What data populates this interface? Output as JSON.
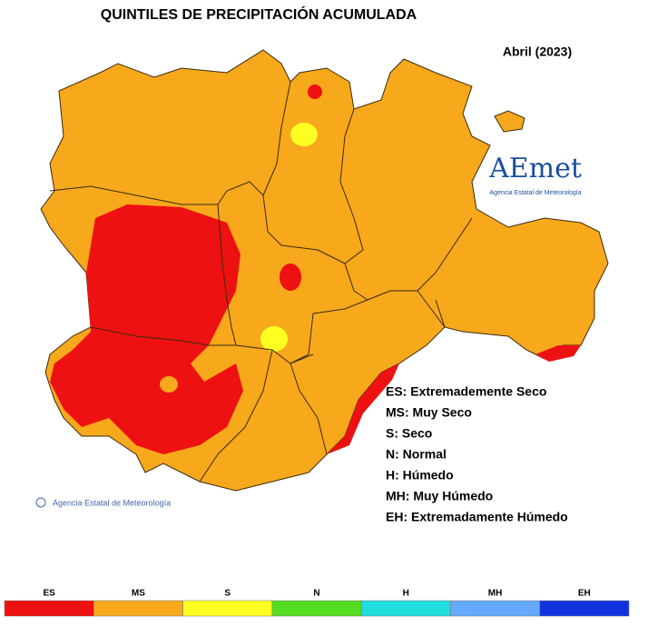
{
  "title": "QUINTILES DE PRECIPITACIÓN ACUMULADA",
  "period": "Abril (2023)",
  "logo": {
    "name": "AEmet",
    "subtitle": "Agencia Estatal de Meteorología"
  },
  "credit": "Agencia Estatal de Meteorología",
  "legend": [
    "ES: Extremademente Seco",
    "MS: Muy Seco",
    "S: Seco",
    "N: Normal",
    "H: Húmedo",
    "MH: Muy Húmedo",
    "EH: Extremadamente Húmedo"
  ],
  "color_scale": [
    {
      "label": "ES",
      "color": "#ee1111"
    },
    {
      "label": "MS",
      "color": "#f7a81b"
    },
    {
      "label": "S",
      "color": "#ffff22"
    },
    {
      "label": "N",
      "color": "#55dd22"
    },
    {
      "label": "H",
      "color": "#22dddd"
    },
    {
      "label": "MH",
      "color": "#66aaff"
    },
    {
      "label": "EH",
      "color": "#1133dd"
    }
  ]
}
